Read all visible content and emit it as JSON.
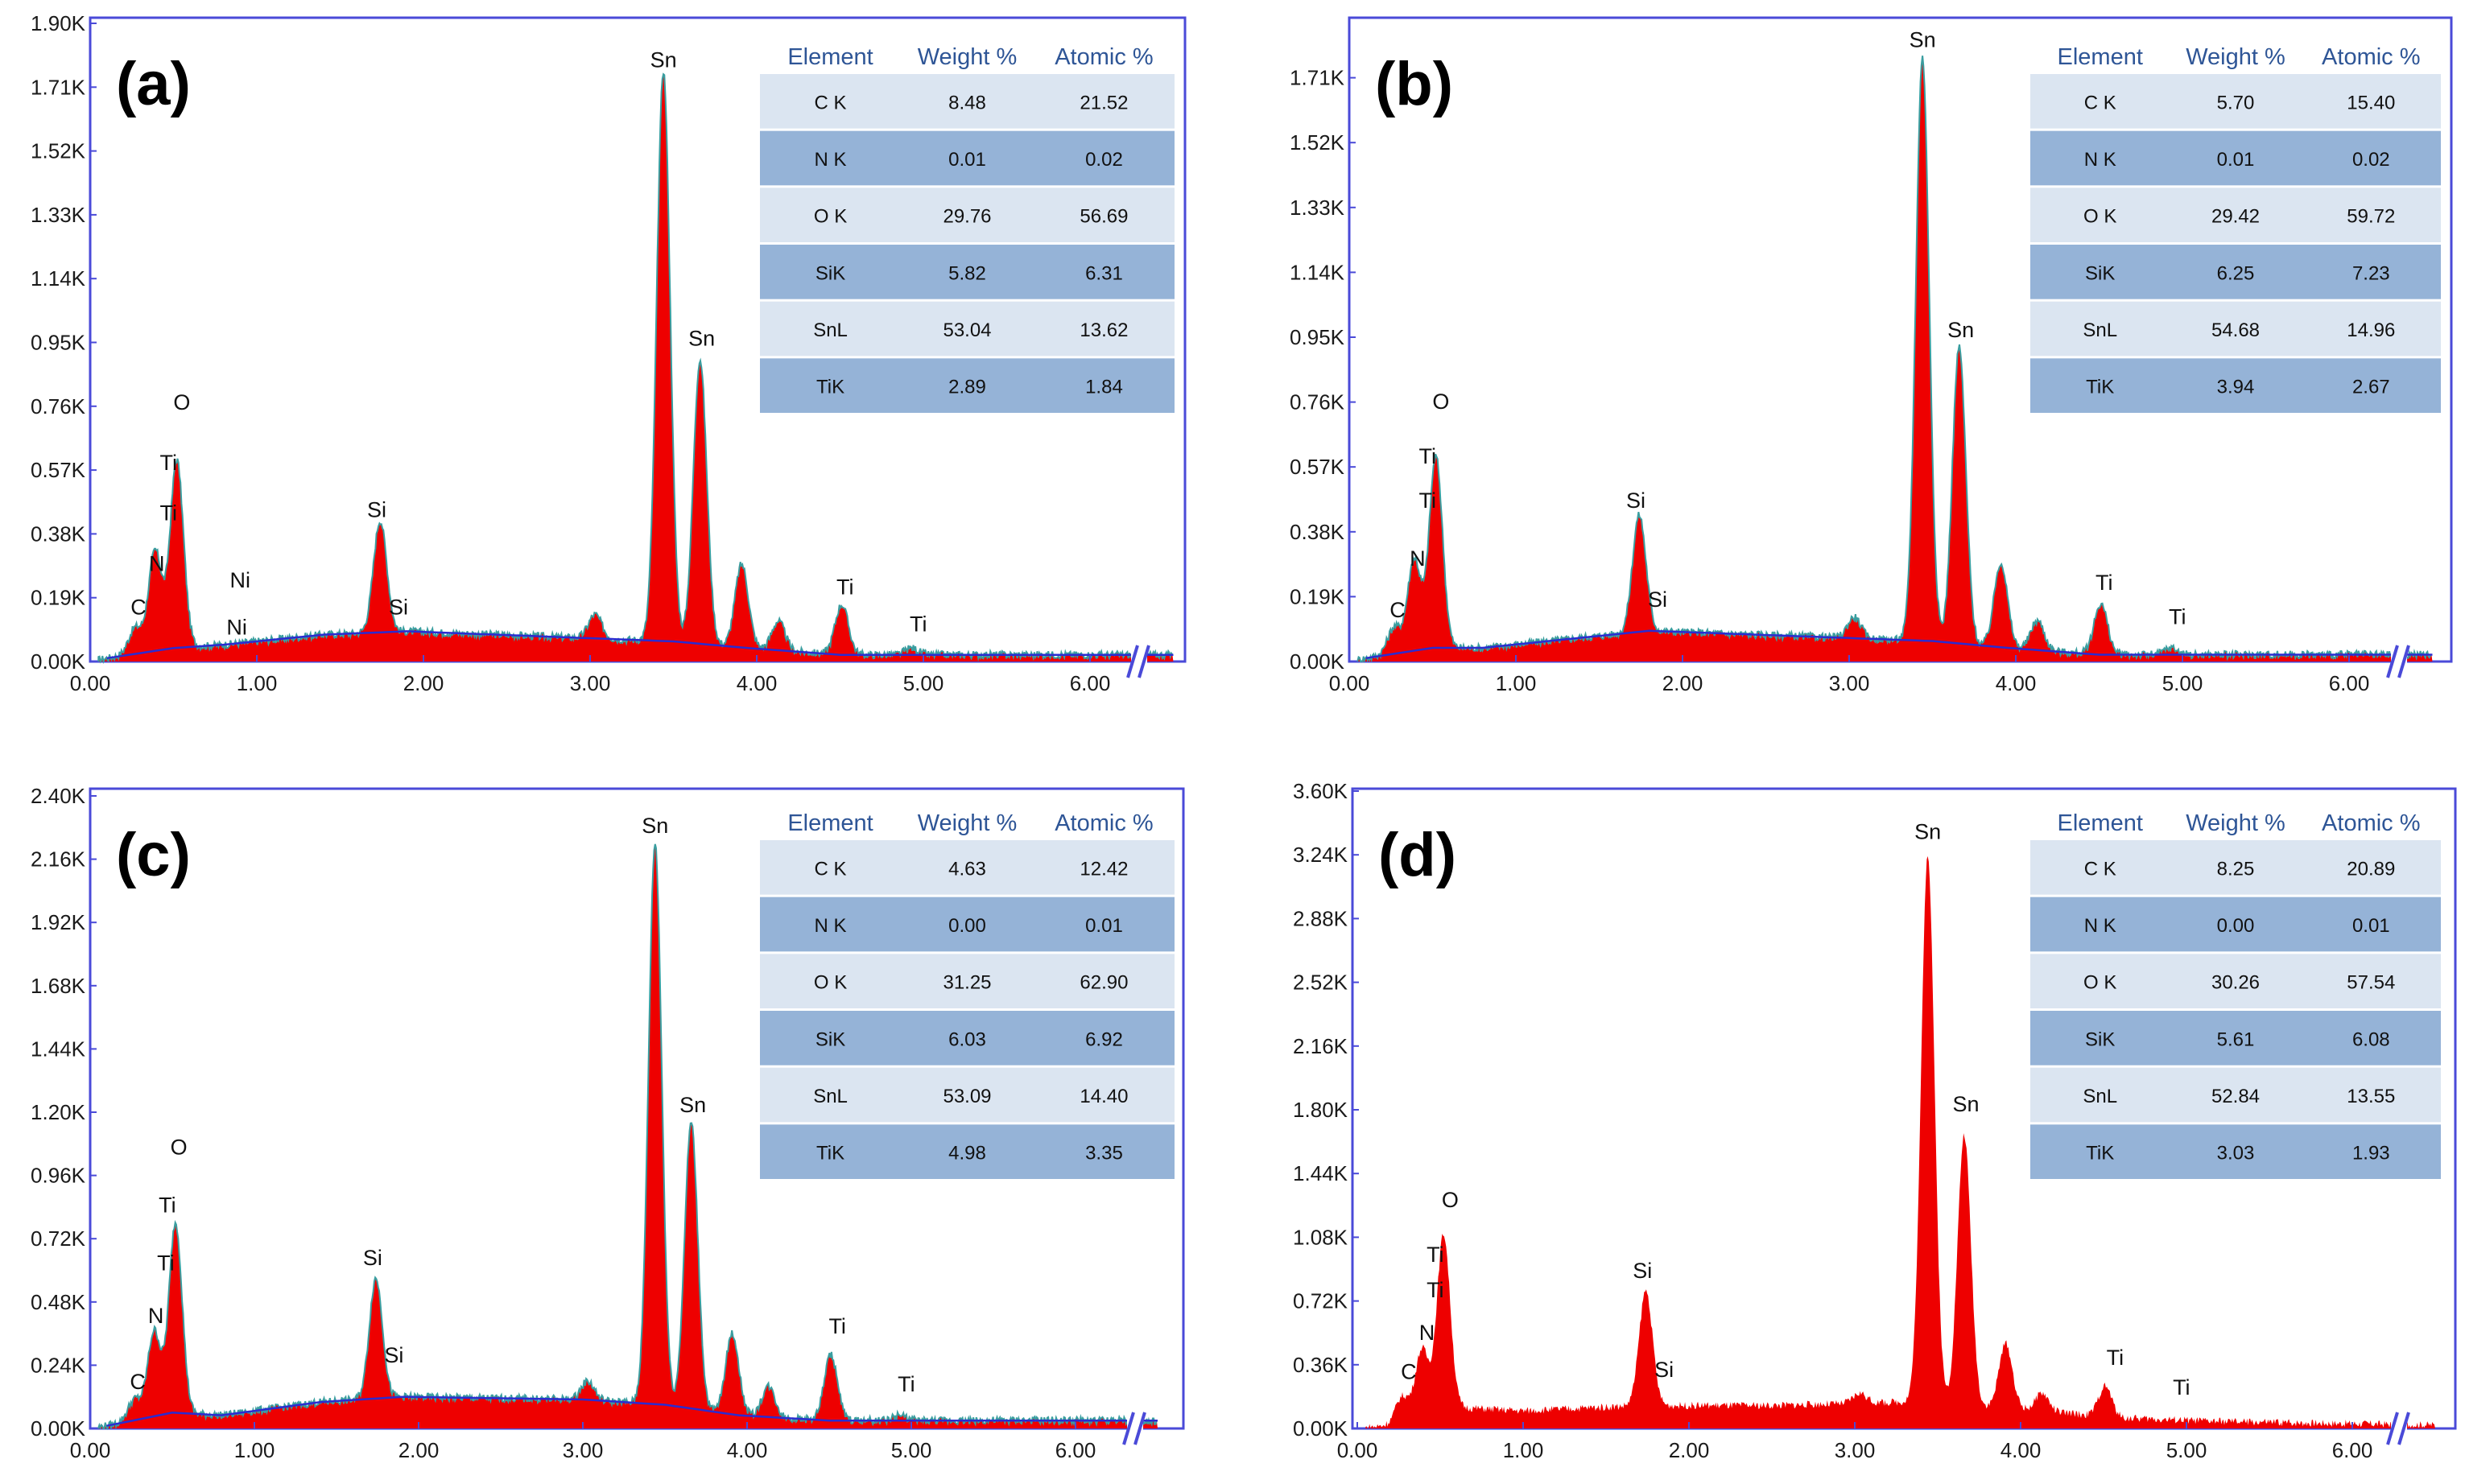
{
  "chart_data": [
    {
      "type": "area",
      "panel_label": "(a)",
      "y_ticks": [
        "0.00K",
        "0.19K",
        "0.38K",
        "0.57K",
        "0.76K",
        "0.95K",
        "1.14K",
        "1.33K",
        "1.52K",
        "1.71K",
        "1.90K"
      ],
      "ylim": [
        0,
        1.9
      ],
      "x_ticks": [
        "0.00",
        "1.00",
        "2.00",
        "3.00",
        "4.00",
        "5.00",
        "6.00"
      ],
      "xlim": [
        0,
        6.5
      ],
      "peaks": [
        {
          "x": 0.27,
          "y": 0.1
        },
        {
          "x": 0.39,
          "y": 0.33
        },
        {
          "x": 0.52,
          "y": 0.6
        },
        {
          "x": 0.72,
          "y": 0.03
        },
        {
          "x": 0.85,
          "y": 0.03
        },
        {
          "x": 1.74,
          "y": 0.42
        },
        {
          "x": 3.03,
          "y": 0.14
        },
        {
          "x": 3.44,
          "y": 1.76
        },
        {
          "x": 3.66,
          "y": 0.9
        },
        {
          "x": 3.91,
          "y": 0.29
        },
        {
          "x": 4.13,
          "y": 0.12
        },
        {
          "x": 4.51,
          "y": 0.17
        },
        {
          "x": 4.93,
          "y": 0.04
        }
      ],
      "background": [
        [
          0,
          0
        ],
        [
          0.1,
          0.01
        ],
        [
          0.5,
          0.04
        ],
        [
          0.8,
          0.05
        ],
        [
          1.4,
          0.08
        ],
        [
          1.9,
          0.09
        ],
        [
          3.5,
          0.06
        ],
        [
          3.95,
          0.04
        ],
        [
          4.5,
          0.02
        ],
        [
          5.0,
          0.02
        ],
        [
          6.5,
          0.02
        ]
      ],
      "element_labels": [
        {
          "text": "C",
          "x": 0.29,
          "y": 0.14
        },
        {
          "text": "N",
          "x": 0.4,
          "y": 0.27
        },
        {
          "text": "Ti",
          "x": 0.47,
          "y": 0.42
        },
        {
          "text": "Ti",
          "x": 0.47,
          "y": 0.57
        },
        {
          "text": "O",
          "x": 0.55,
          "y": 0.75
        },
        {
          "text": "Ni",
          "x": 0.9,
          "y": 0.22
        },
        {
          "text": "Ni",
          "x": 0.88,
          "y": 0.08
        },
        {
          "text": "Si",
          "x": 1.72,
          "y": 0.43
        },
        {
          "text": "Si",
          "x": 1.85,
          "y": 0.14
        },
        {
          "text": "Sn",
          "x": 3.44,
          "y": 1.77
        },
        {
          "text": "Sn",
          "x": 3.67,
          "y": 0.94
        },
        {
          "text": "Ti",
          "x": 4.53,
          "y": 0.2
        },
        {
          "text": "Ti",
          "x": 4.97,
          "y": 0.09
        }
      ],
      "table": {
        "headers": [
          "Element",
          "Weight %",
          "Atomic %"
        ],
        "rows": [
          [
            "C K",
            "8.48",
            "21.52"
          ],
          [
            "N K",
            "0.01",
            "0.02"
          ],
          [
            "O K",
            "29.76",
            "56.69"
          ],
          [
            "SiK",
            "5.82",
            "6.31"
          ],
          [
            "SnL",
            "53.04",
            "13.62"
          ],
          [
            "TiK",
            "2.89",
            "1.84"
          ]
        ]
      }
    },
    {
      "type": "area",
      "panel_label": "(b)",
      "y_ticks": [
        "0.00K",
        "0.19K",
        "0.38K",
        "0.57K",
        "0.76K",
        "0.95K",
        "1.14K",
        "1.33K",
        "1.52K",
        "1.71K"
      ],
      "ylim": [
        0,
        1.9
      ],
      "x_ticks": [
        "0.00",
        "1.00",
        "2.00",
        "3.00",
        "4.00",
        "5.00",
        "6.00"
      ],
      "xlim": [
        0,
        6.5
      ],
      "peaks": [
        {
          "x": 0.27,
          "y": 0.1
        },
        {
          "x": 0.39,
          "y": 0.3
        },
        {
          "x": 0.52,
          "y": 0.6
        },
        {
          "x": 0.68,
          "y": 0.03
        },
        {
          "x": 1.74,
          "y": 0.43
        },
        {
          "x": 3.03,
          "y": 0.13
        },
        {
          "x": 3.44,
          "y": 1.77
        },
        {
          "x": 3.66,
          "y": 0.92
        },
        {
          "x": 3.91,
          "y": 0.29
        },
        {
          "x": 4.13,
          "y": 0.12
        },
        {
          "x": 4.51,
          "y": 0.17
        },
        {
          "x": 4.93,
          "y": 0.04
        }
      ],
      "background": [
        [
          0,
          0
        ],
        [
          0.1,
          0.01
        ],
        [
          0.5,
          0.04
        ],
        [
          0.8,
          0.04
        ],
        [
          1.4,
          0.07
        ],
        [
          1.8,
          0.09
        ],
        [
          3.5,
          0.06
        ],
        [
          3.95,
          0.04
        ],
        [
          4.5,
          0.02
        ],
        [
          5.0,
          0.02
        ],
        [
          6.5,
          0.02
        ]
      ],
      "element_labels": [
        {
          "text": "C",
          "x": 0.29,
          "y": 0.13
        },
        {
          "text": "N",
          "x": 0.41,
          "y": 0.28
        },
        {
          "text": "Ti",
          "x": 0.47,
          "y": 0.45
        },
        {
          "text": "Ti",
          "x": 0.47,
          "y": 0.58
        },
        {
          "text": "O",
          "x": 0.55,
          "y": 0.74
        },
        {
          "text": "Si",
          "x": 1.72,
          "y": 0.45
        },
        {
          "text": "Si",
          "x": 1.85,
          "y": 0.16
        },
        {
          "text": "Sn",
          "x": 3.44,
          "y": 1.8
        },
        {
          "text": "Sn",
          "x": 3.67,
          "y": 0.95
        },
        {
          "text": "Ti",
          "x": 4.53,
          "y": 0.21
        },
        {
          "text": "Ti",
          "x": 4.97,
          "y": 0.11
        }
      ],
      "table": {
        "headers": [
          "Element",
          "Weight %",
          "Atomic %"
        ],
        "rows": [
          [
            "C K",
            "5.70",
            "15.40"
          ],
          [
            "N K",
            "0.01",
            "0.02"
          ],
          [
            "O K",
            "29.42",
            "59.72"
          ],
          [
            "SiK",
            "6.25",
            "7.23"
          ],
          [
            "SnL",
            "54.68",
            "14.96"
          ],
          [
            "TiK",
            "3.94",
            "2.67"
          ]
        ]
      }
    },
    {
      "type": "area",
      "panel_label": "(c)",
      "y_ticks": [
        "0.00K",
        "0.24K",
        "0.48K",
        "0.72K",
        "0.96K",
        "1.20K",
        "1.44K",
        "1.68K",
        "1.92K",
        "2.16K",
        "2.40K"
      ],
      "ylim": [
        0,
        2.4
      ],
      "x_ticks": [
        "0.00",
        "1.00",
        "2.00",
        "3.00",
        "4.00",
        "5.00",
        "6.00"
      ],
      "xlim": [
        0,
        6.5
      ],
      "peaks": [
        {
          "x": 0.27,
          "y": 0.11
        },
        {
          "x": 0.39,
          "y": 0.37
        },
        {
          "x": 0.52,
          "y": 0.78
        },
        {
          "x": 0.68,
          "y": 0.04
        },
        {
          "x": 1.74,
          "y": 0.57
        },
        {
          "x": 3.03,
          "y": 0.18
        },
        {
          "x": 3.44,
          "y": 2.22
        },
        {
          "x": 3.66,
          "y": 1.16
        },
        {
          "x": 3.91,
          "y": 0.36
        },
        {
          "x": 4.13,
          "y": 0.16
        },
        {
          "x": 4.51,
          "y": 0.28
        },
        {
          "x": 4.93,
          "y": 0.05
        }
      ],
      "background": [
        [
          0,
          0
        ],
        [
          0.1,
          0.01
        ],
        [
          0.5,
          0.06
        ],
        [
          0.8,
          0.05
        ],
        [
          1.4,
          0.1
        ],
        [
          1.9,
          0.12
        ],
        [
          3.0,
          0.11
        ],
        [
          3.5,
          0.09
        ],
        [
          3.95,
          0.05
        ],
        [
          4.5,
          0.03
        ],
        [
          5.0,
          0.03
        ],
        [
          6.5,
          0.03
        ]
      ],
      "element_labels": [
        {
          "text": "C",
          "x": 0.29,
          "y": 0.15
        },
        {
          "text": "N",
          "x": 0.4,
          "y": 0.4
        },
        {
          "text": "Ti",
          "x": 0.46,
          "y": 0.6
        },
        {
          "text": "Ti",
          "x": 0.47,
          "y": 0.82
        },
        {
          "text": "O",
          "x": 0.54,
          "y": 1.04
        },
        {
          "text": "Si",
          "x": 1.72,
          "y": 0.62
        },
        {
          "text": "Si",
          "x": 1.85,
          "y": 0.25
        },
        {
          "text": "Sn",
          "x": 3.44,
          "y": 2.26
        },
        {
          "text": "Sn",
          "x": 3.67,
          "y": 1.2
        },
        {
          "text": "Ti",
          "x": 4.55,
          "y": 0.36
        },
        {
          "text": "Ti",
          "x": 4.97,
          "y": 0.14
        }
      ],
      "table": {
        "headers": [
          "Element",
          "Weight %",
          "Atomic %"
        ],
        "rows": [
          [
            "C K",
            "4.63",
            "12.42"
          ],
          [
            "N K",
            "0.00",
            "0.01"
          ],
          [
            "O K",
            "31.25",
            "62.90"
          ],
          [
            "SiK",
            "6.03",
            "6.92"
          ],
          [
            "SnL",
            "53.09",
            "14.40"
          ],
          [
            "TiK",
            "4.98",
            "3.35"
          ]
        ]
      }
    },
    {
      "type": "area",
      "panel_label": "(d)",
      "y_ticks": [
        "0.00K",
        "0.36K",
        "0.72K",
        "1.08K",
        "1.44K",
        "1.80K",
        "2.16K",
        "2.52K",
        "2.88K",
        "3.24K",
        "3.60K"
      ],
      "ylim": [
        0,
        3.6
      ],
      "x_ticks": [
        "0.00",
        "1.00",
        "2.00",
        "3.00",
        "4.00",
        "5.00",
        "6.00"
      ],
      "xlim": [
        0,
        6.5
      ],
      "peaks": [
        {
          "x": 0.27,
          "y": 0.18
        },
        {
          "x": 0.39,
          "y": 0.45
        },
        {
          "x": 0.52,
          "y": 1.1
        },
        {
          "x": 1.74,
          "y": 0.78
        },
        {
          "x": 3.03,
          "y": 0.2
        },
        {
          "x": 3.44,
          "y": 3.25
        },
        {
          "x": 3.66,
          "y": 1.66
        },
        {
          "x": 3.91,
          "y": 0.48
        },
        {
          "x": 4.13,
          "y": 0.2
        },
        {
          "x": 4.51,
          "y": 0.24
        },
        {
          "x": 4.93,
          "y": 0.05
        }
      ],
      "background": [
        [
          0,
          0
        ],
        [
          0.2,
          0.02
        ],
        [
          0.6,
          0.12
        ],
        [
          1.0,
          0.1
        ],
        [
          1.7,
          0.13
        ],
        [
          2.5,
          0.13
        ],
        [
          3.3,
          0.15
        ],
        [
          4.0,
          0.11
        ],
        [
          4.6,
          0.06
        ],
        [
          5.2,
          0.04
        ],
        [
          6.5,
          0.02
        ]
      ],
      "element_labels": [
        {
          "text": "C",
          "x": 0.31,
          "y": 0.28
        },
        {
          "text": "N",
          "x": 0.42,
          "y": 0.5
        },
        {
          "text": "Ti",
          "x": 0.47,
          "y": 0.74
        },
        {
          "text": "Ti",
          "x": 0.47,
          "y": 0.94
        },
        {
          "text": "O",
          "x": 0.56,
          "y": 1.25
        },
        {
          "text": "Si",
          "x": 1.72,
          "y": 0.85
        },
        {
          "text": "Si",
          "x": 1.85,
          "y": 0.29
        },
        {
          "text": "Sn",
          "x": 3.44,
          "y": 3.33
        },
        {
          "text": "Sn",
          "x": 3.67,
          "y": 1.79
        },
        {
          "text": "Ti",
          "x": 4.57,
          "y": 0.36
        },
        {
          "text": "Ti",
          "x": 4.97,
          "y": 0.19
        }
      ],
      "table": {
        "headers": [
          "Element",
          "Weight %",
          "Atomic %"
        ],
        "rows": [
          [
            "C K",
            "8.25",
            "20.89"
          ],
          [
            "N K",
            "0.00",
            "0.01"
          ],
          [
            "O K",
            "30.26",
            "57.54"
          ],
          [
            "SiK",
            "5.61",
            "6.08"
          ],
          [
            "SnL",
            "52.84",
            "13.55"
          ],
          [
            "TiK",
            "3.03",
            "1.93"
          ]
        ]
      }
    }
  ],
  "colors": {
    "frame": "#4a4ad8",
    "fill": "#ee0000",
    "outline": "#3a9ea0",
    "background_line": "#2b2bd0",
    "table_light": "#dbe5f1",
    "table_dark": "#95b3d7",
    "table_header_text": "#2e5596"
  }
}
